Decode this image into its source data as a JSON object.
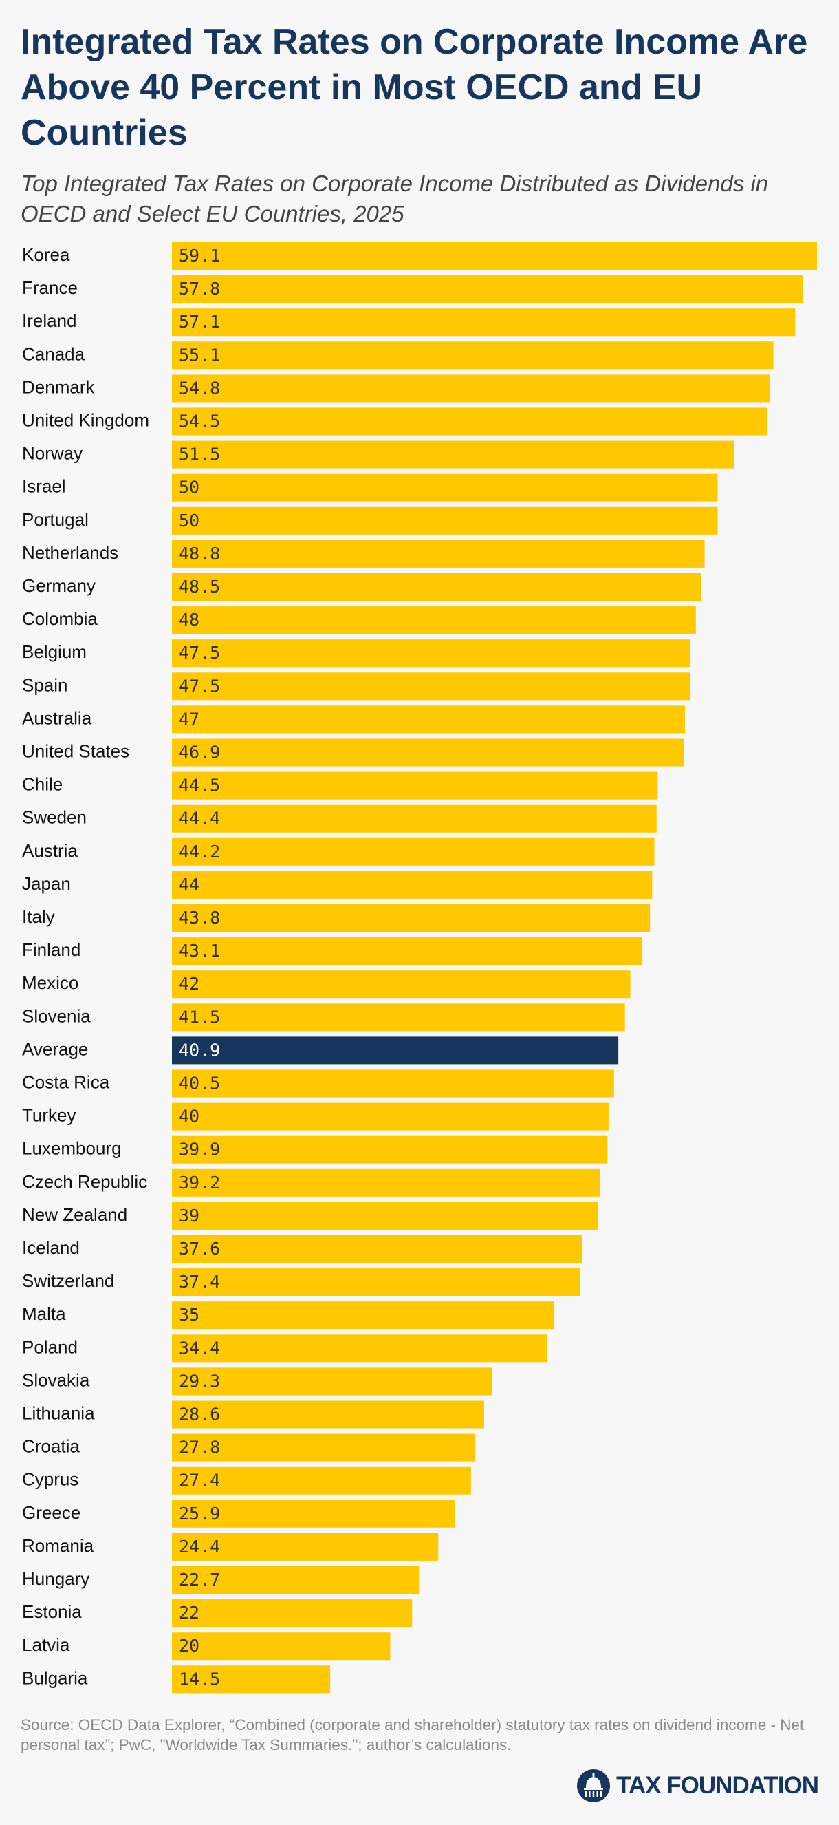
{
  "title": "Integrated Tax Rates on Corporate Income Are Above 40 Percent in Most OECD and EU Countries",
  "subtitle": "Top Integrated Tax Rates on Corporate Income Distributed as Dividends in OECD and Select EU Countries, 2025",
  "source": "Source: OECD Data Explorer, “Combined (corporate and shareholder) statutory tax rates on dividend income - Net personal tax”; PwC, \"Worldwide Tax Summaries.\"; author’s calculations.",
  "brand": {
    "name": "TAX FOUNDATION",
    "logo_icon": "capitol-dome-icon"
  },
  "colors": {
    "bar": "#ffc800",
    "highlight": "#17365d",
    "bar_label": "#333333",
    "highlight_label": "#ffffff",
    "title": "#17365d"
  },
  "chart_data": {
    "type": "bar",
    "orientation": "horizontal",
    "xlim": [
      0,
      59.1
    ],
    "highlight": "Average",
    "categories": [
      "Korea",
      "France",
      "Ireland",
      "Canada",
      "Denmark",
      "United Kingdom",
      "Norway",
      "Israel",
      "Portugal",
      "Netherlands",
      "Germany",
      "Colombia",
      "Belgium",
      "Spain",
      "Australia",
      "United States",
      "Chile",
      "Sweden",
      "Austria",
      "Japan",
      "Italy",
      "Finland",
      "Mexico",
      "Slovenia",
      "Average",
      "Costa Rica",
      "Turkey",
      "Luxembourg",
      "Czech Republic",
      "New Zealand",
      "Iceland",
      "Switzerland",
      "Malta",
      "Poland",
      "Slovakia",
      "Lithuania",
      "Croatia",
      "Cyprus",
      "Greece",
      "Romania",
      "Hungary",
      "Estonia",
      "Latvia",
      "Bulgaria"
    ],
    "values": [
      59.1,
      57.8,
      57.1,
      55.1,
      54.8,
      54.5,
      51.5,
      50,
      50,
      48.8,
      48.5,
      48,
      47.5,
      47.5,
      47,
      46.9,
      44.5,
      44.4,
      44.2,
      44,
      43.8,
      43.1,
      42,
      41.5,
      40.9,
      40.5,
      40,
      39.9,
      39.2,
      39,
      37.6,
      37.4,
      35,
      34.4,
      29.3,
      28.6,
      27.8,
      27.4,
      25.9,
      24.4,
      22.7,
      22,
      20,
      14.5
    ]
  }
}
